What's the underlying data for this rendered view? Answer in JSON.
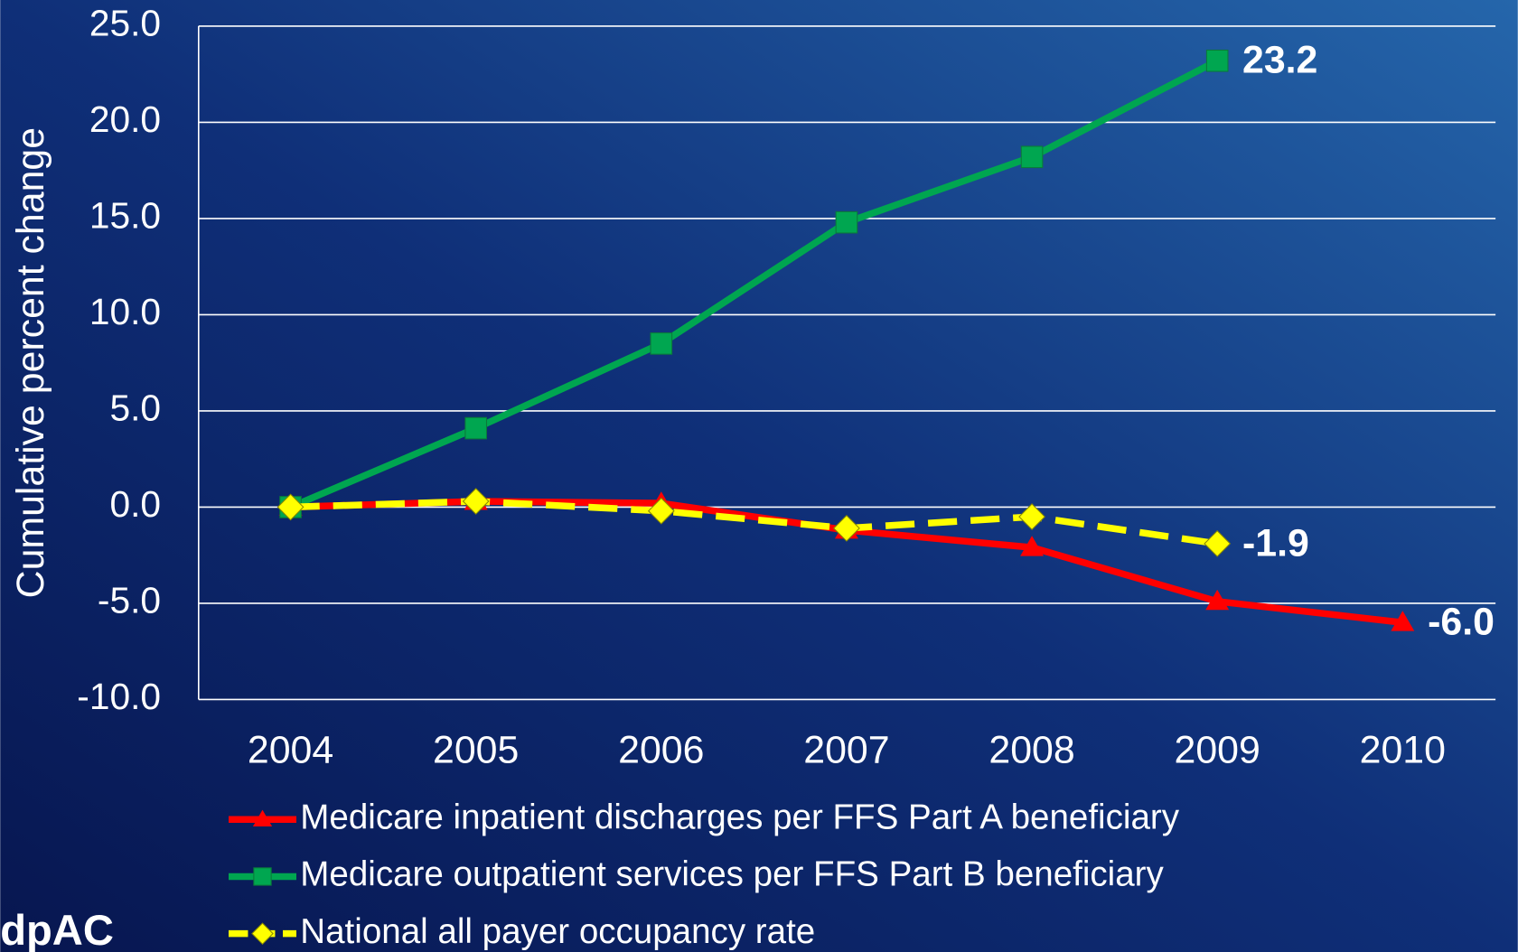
{
  "chart_data": {
    "type": "line",
    "y_label": "Cumulative percent change",
    "categories": [
      "2004",
      "2005",
      "2006",
      "2007",
      "2008",
      "2009",
      "2010"
    ],
    "series": [
      {
        "name": "Medicare inpatient discharges per FFS Part A beneficiary",
        "color": "#ff0000",
        "marker": "triangle",
        "dashed": false,
        "values": [
          0,
          0.3,
          0.2,
          -1.2,
          -2.1,
          -4.9,
          -6.0
        ],
        "value_labels": [
          null,
          null,
          null,
          null,
          null,
          null,
          "-6.0"
        ]
      },
      {
        "name": "Medicare outpatient services per FFS Part B beneficiary",
        "color": "#00a650",
        "marker": "square",
        "dashed": false,
        "values": [
          0,
          4.1,
          8.5,
          14.8,
          18.2,
          23.2,
          null
        ],
        "value_labels": [
          null,
          null,
          null,
          null,
          null,
          "23.2",
          null
        ]
      },
      {
        "name": "National all payer occupancy rate",
        "color": "#ffff00",
        "marker": "diamond",
        "dashed": true,
        "values": [
          0,
          0.3,
          -0.2,
          -1.1,
          -0.5,
          -1.9,
          null
        ],
        "value_labels": [
          null,
          null,
          null,
          null,
          null,
          "-1.9",
          null
        ]
      }
    ],
    "ylim": [
      -10,
      25
    ],
    "yticks": [
      {
        "value": -10,
        "label": "-10.0"
      },
      {
        "value": -5,
        "label": "-5.0"
      },
      {
        "value": 0,
        "label": "0.0"
      },
      {
        "value": 5,
        "label": "5.0"
      },
      {
        "value": 10,
        "label": "10.0"
      },
      {
        "value": 15,
        "label": "15.0"
      },
      {
        "value": 20,
        "label": "20.0"
      },
      {
        "value": 25,
        "label": "25.0"
      }
    ],
    "grid": true,
    "logo": "dpAC"
  }
}
